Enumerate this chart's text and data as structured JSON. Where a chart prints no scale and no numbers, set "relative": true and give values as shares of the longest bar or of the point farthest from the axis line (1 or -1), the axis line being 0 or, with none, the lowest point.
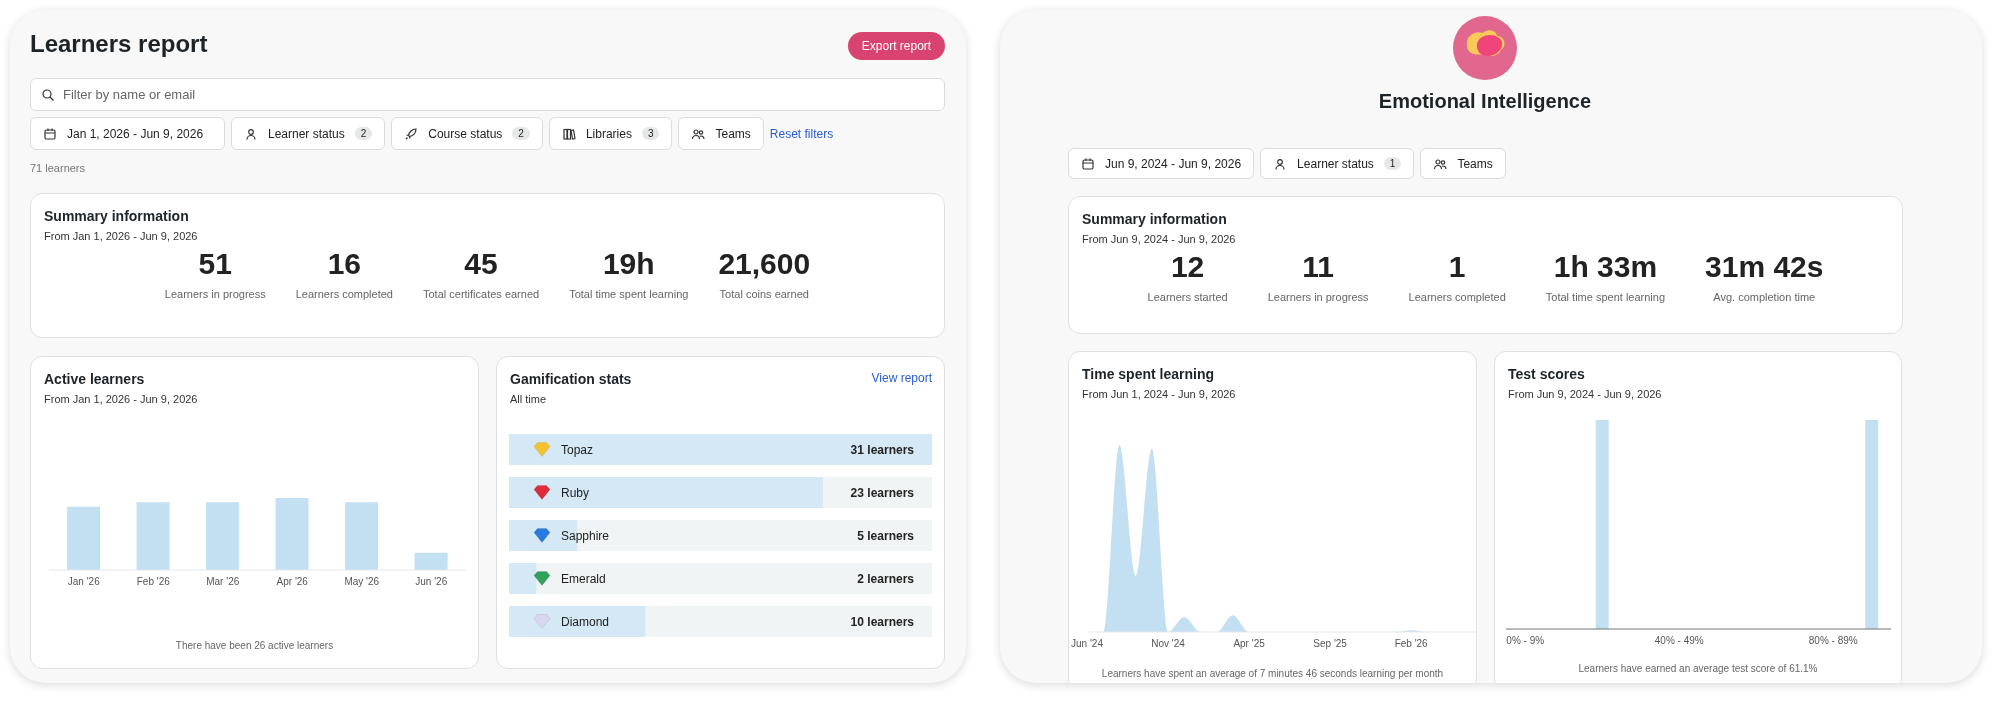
{
  "chart_data": [
    {
      "type": "other",
      "title": "Learners report",
      "categories": [
        "Jan 1, 2026 - Jun 9, 2026",
        "Learner status",
        "Course status",
        "Libraries",
        "Teams"
      ],
      "value_labels": [
        null,
        "2",
        "2",
        "3",
        null
      ],
      "annotations": [
        "Export report",
        "Filter by name or email",
        "Reset filters",
        "71 learners"
      ]
    },
    {
      "type": "other",
      "title": "Summary information",
      "subtitle": "From Jan 1, 2026 - Jun 9, 2026",
      "categories": [
        "Learners in progress",
        "Learners completed",
        "Total certificates earned",
        "Total time spent learning",
        "Total coins earned"
      ],
      "value_labels": [
        "51",
        "16",
        "45",
        "19h",
        "21,600"
      ]
    },
    {
      "type": "bar",
      "title": "Active learners",
      "subtitle": "From Jan 1, 2026 - Jun 9, 2026",
      "categories": [
        "Jan '26",
        "Feb '26",
        "Mar '26",
        "Apr '26",
        "May '26",
        "Jun '26"
      ],
      "values": [
        0.88,
        0.94,
        0.94,
        1,
        0.94,
        0.24
      ],
      "relative": true,
      "color": "#c3dff2",
      "annotations": [
        "There have been 26 active learners"
      ]
    },
    {
      "type": "bar",
      "orientation": "horizontal",
      "title": "Gamification stats",
      "subtitle": "All time",
      "categories": [
        "Topaz",
        "Ruby",
        "Sapphire",
        "Emerald",
        "Diamond"
      ],
      "values": [
        31,
        23,
        5,
        2,
        10
      ],
      "value_labels": [
        "31 learners",
        "23 learners",
        "5 learners",
        "2 learners",
        "10 learners"
      ],
      "color": "#d4e8f5",
      "annotations": [
        "View report"
      ]
    },
    {
      "type": "other",
      "title": "Emotional Intelligence",
      "categories": [
        "Jun 9, 2024 - Jun 9, 2026",
        "Learner status",
        "Teams"
      ],
      "value_labels": [
        null,
        "1",
        null
      ]
    },
    {
      "type": "other",
      "title": "Summary information",
      "subtitle": "From Jun 9, 2024 - Jun 9, 2026",
      "categories": [
        "Learners started",
        "Learners in progress",
        "Learners completed",
        "Total time spent learning",
        "Avg. completion time"
      ],
      "value_labels": [
        "12",
        "11",
        "1",
        "1h 33m",
        "31m 42s"
      ]
    },
    {
      "type": "area",
      "title": "Time spent learning",
      "subtitle": "From Jun 1, 2024 - Jun 9, 2026",
      "categories": [
        "Jun '24",
        null,
        null,
        null,
        null,
        "Nov '24",
        null,
        null,
        null,
        null,
        "Apr '25",
        null,
        null,
        null,
        null,
        "Sep '25",
        null,
        null,
        null,
        null,
        "Feb '26",
        null,
        null,
        null,
        null
      ],
      "values": [
        0,
        0,
        1,
        0.3,
        0.98,
        0,
        0.08,
        0,
        0,
        0.09,
        0,
        0,
        0,
        0,
        0,
        0,
        0,
        0,
        0,
        0,
        0.01,
        0,
        0,
        0,
        0
      ],
      "relative": true,
      "color": "#c3dff2",
      "annotations": [
        "Learners have spent an average of 7 minutes 46 seconds learning per month"
      ]
    },
    {
      "type": "bar",
      "title": "Test scores",
      "subtitle": "From Jun 9, 2024 - Jun 9, 2026",
      "categories": [
        "0% - 9%",
        null,
        null,
        null,
        "40% - 49%",
        null,
        null,
        null,
        "80% - 89%",
        null
      ],
      "values": [
        0,
        0,
        1,
        0,
        0,
        0,
        0,
        0,
        0,
        1
      ],
      "relative": true,
      "color": "#c3dff2",
      "annotations": [
        "Learners have earned an average test score of 61.1%"
      ]
    }
  ]
}
